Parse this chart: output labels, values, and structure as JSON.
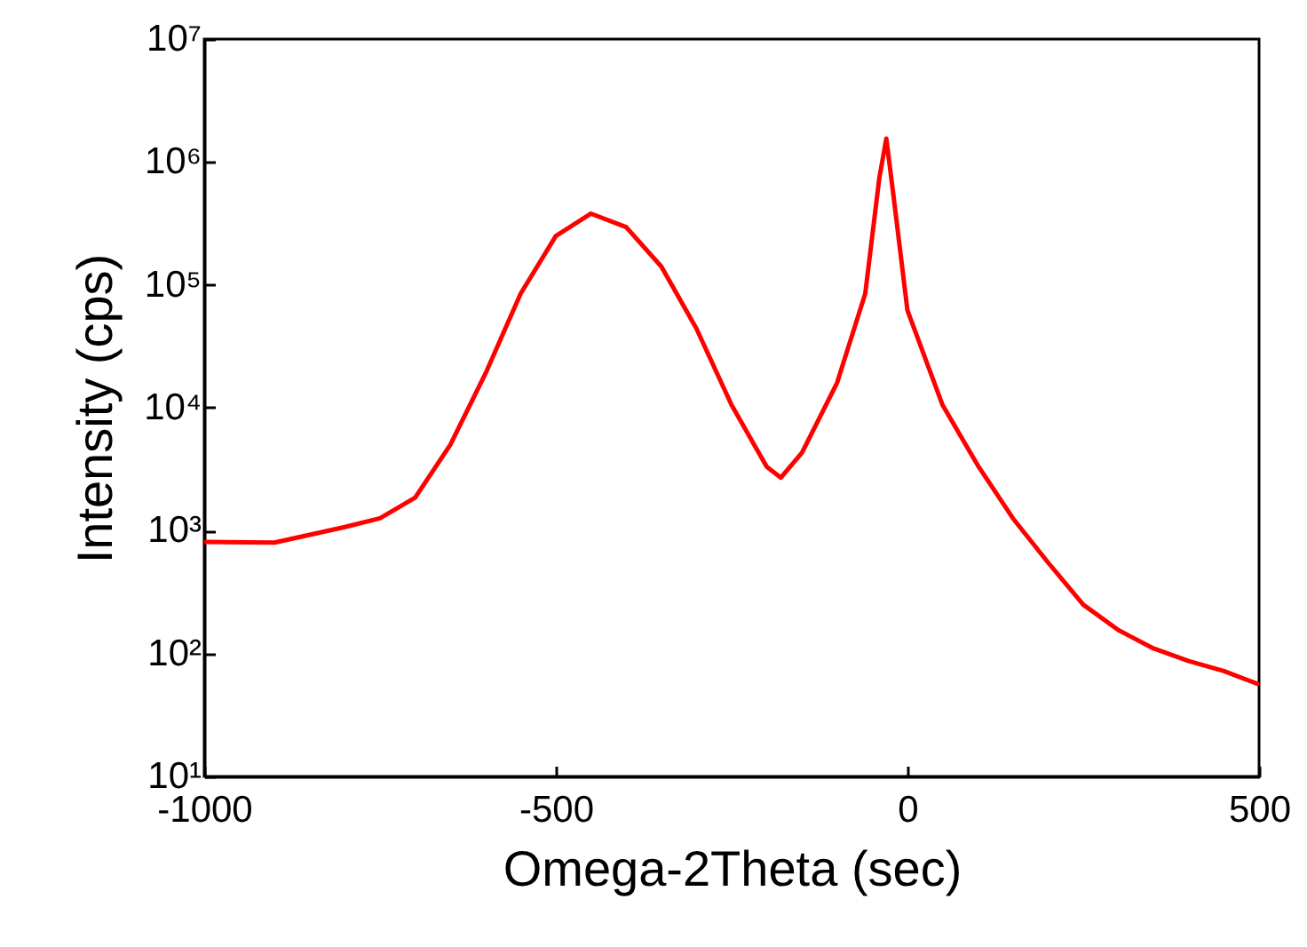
{
  "chart_data": {
    "type": "line",
    "xlabel": "Omega-2Theta (sec)",
    "ylabel": "Intensity (cps)",
    "log": "y",
    "grid": false,
    "xlim": [
      -1000,
      500
    ],
    "xticks": [
      -1000,
      -500,
      0,
      500
    ],
    "ylim": [
      10,
      10000000
    ],
    "yticks": [
      {
        "value": 10,
        "label": "10¹"
      },
      {
        "value": 100,
        "label": "10²"
      },
      {
        "value": 1000,
        "label": "10³"
      },
      {
        "value": 10000,
        "label": "10⁴"
      },
      {
        "value": 100000,
        "label": "10⁵"
      },
      {
        "value": 1000000,
        "label": "10⁶"
      },
      {
        "value": 10000000,
        "label": "10⁷"
      }
    ],
    "x": [
      -1000,
      -900,
      -800,
      -750,
      -700,
      -650,
      -600,
      -550,
      -500,
      -450,
      -400,
      -350,
      -300,
      -250,
      -200,
      -180,
      -150,
      -100,
      -60,
      -40,
      -30,
      -20,
      0,
      50,
      100,
      150,
      200,
      250,
      300,
      350,
      400,
      450,
      500
    ],
    "series": [
      {
        "color": "#ff0000",
        "values": [
          810,
          800,
          1070,
          1260,
          1860,
          5000,
          19000,
          85000,
          250000,
          380000,
          295000,
          141000,
          44000,
          10500,
          3300,
          2700,
          4300,
          16000,
          85000,
          740000,
          1550000,
          540000,
          62000,
          10500,
          3400,
          1260,
          550,
          250,
          155,
          110,
          87,
          72,
          56
        ]
      }
    ]
  }
}
